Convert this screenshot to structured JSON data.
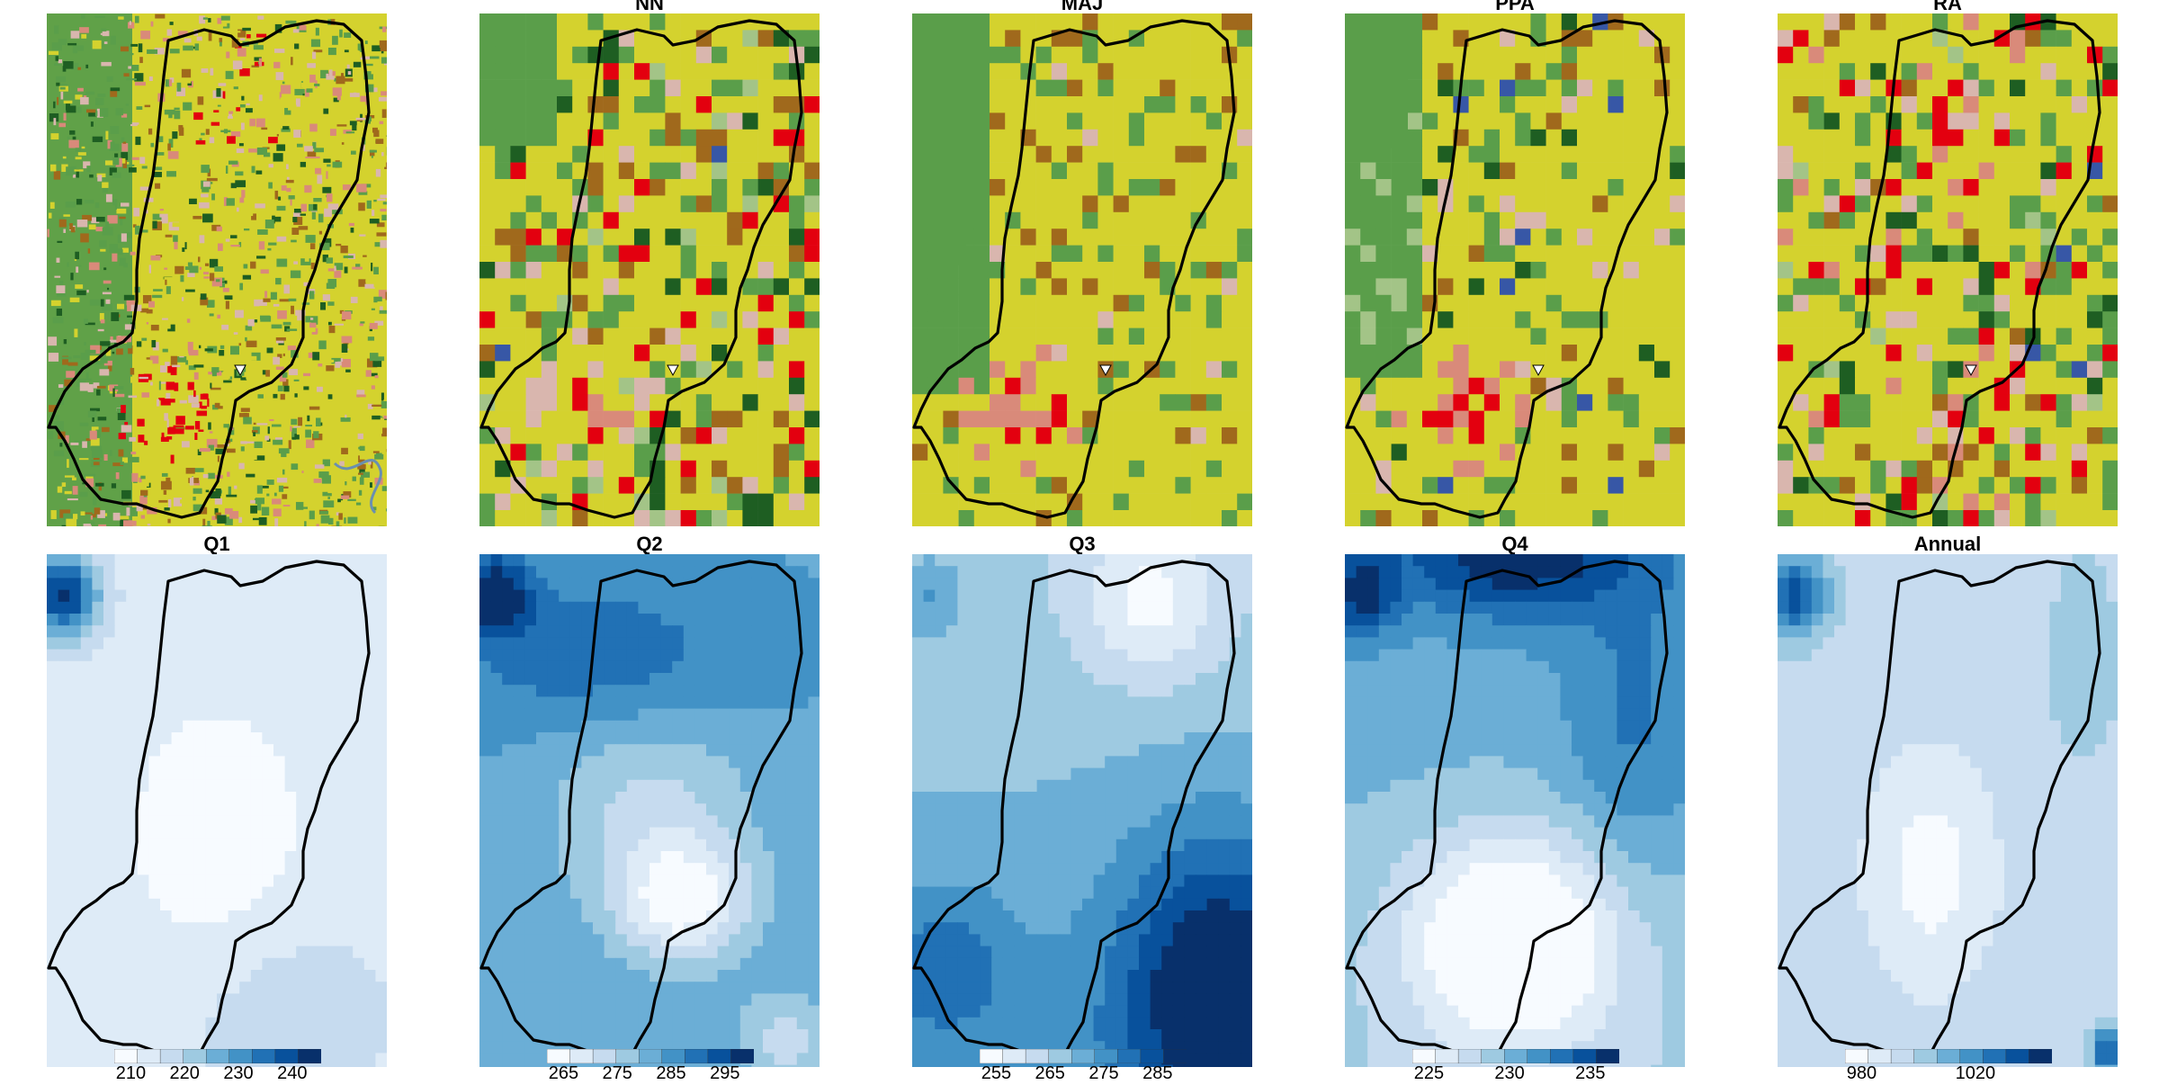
{
  "figure": {
    "top_row": {
      "panels": [
        {
          "id": "lc-orig",
          "title": "",
          "kind": "landcover",
          "variant": "orig"
        },
        {
          "id": "lc-nn",
          "title": "NN",
          "kind": "landcover",
          "variant": "nn"
        },
        {
          "id": "lc-maj",
          "title": "MAJ",
          "kind": "landcover",
          "variant": "maj"
        },
        {
          "id": "lc-ppa",
          "title": "PPA",
          "kind": "landcover",
          "variant": "ppa"
        },
        {
          "id": "lc-ra",
          "title": "RA",
          "kind": "landcover",
          "variant": "ra"
        }
      ],
      "landcover_colors": {
        "cropland": "#d4d22e",
        "grassland": "#5a9e4a",
        "forest": "#1e5e22",
        "shrub": "#a3c487",
        "urban_high": "#e3000f",
        "urban_low": "#d98a7a",
        "pink": "#d9b6ae",
        "barren": "#a0691c",
        "water": "#3757a6"
      },
      "outlet_marker": "white-triangle"
    },
    "bottom_row": {
      "panels": [
        {
          "id": "q1",
          "title": "Q1",
          "ticks": [
            "210",
            "220",
            "230",
            "240"
          ]
        },
        {
          "id": "q2",
          "title": "Q2",
          "ticks": [
            "265",
            "275",
            "285",
            "295"
          ]
        },
        {
          "id": "q3",
          "title": "Q3",
          "ticks": [
            "255",
            "265",
            "275",
            "285"
          ]
        },
        {
          "id": "q4",
          "title": "Q4",
          "ticks": [
            "225",
            "230",
            "235"
          ]
        },
        {
          "id": "annual",
          "title": "Annual",
          "ticks": [
            "980",
            "1020"
          ]
        }
      ],
      "colormap": "Blues",
      "blues": [
        "#f7fbff",
        "#deebf7",
        "#c6dbef",
        "#9ecae1",
        "#6baed6",
        "#4292c6",
        "#2171b5",
        "#08519c",
        "#08306b"
      ]
    },
    "outline_color": "#000000"
  }
}
